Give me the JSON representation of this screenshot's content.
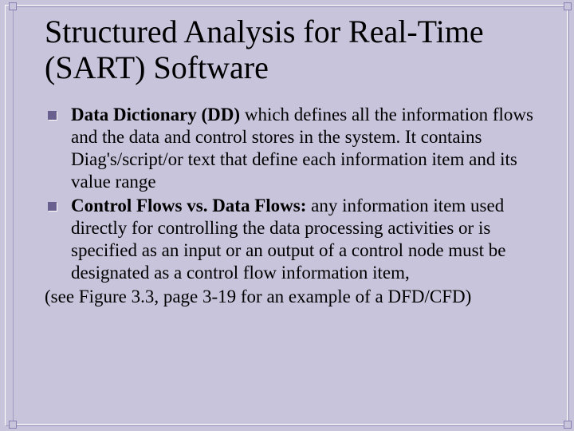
{
  "colors": {
    "background": "#c8c4dc",
    "bullet": "#6a6090",
    "text": "#000000",
    "frame_light": "#ffffff",
    "frame_dark": "#a09cc0"
  },
  "typography": {
    "title_fontsize": 40,
    "body_fontsize": 23,
    "font_family": "Times New Roman"
  },
  "title": "Structured Analysis for Real-Time (SART) Software",
  "bullets": [
    {
      "bold": "Data Dictionary (DD)",
      "rest": " which defines all the information flows and the data and control stores in the system. It contains Diag's/script/or text that define each information item and its value range"
    },
    {
      "bold": "Control Flows vs. Data Flows:",
      "rest": " any information item used directly for controlling the data processing activities or is specified as an input or an output of a control node must be designated as a control flow information item,"
    }
  ],
  "tail": "(see Figure 3.3, page 3-19 for an example of a DFD/CFD)"
}
